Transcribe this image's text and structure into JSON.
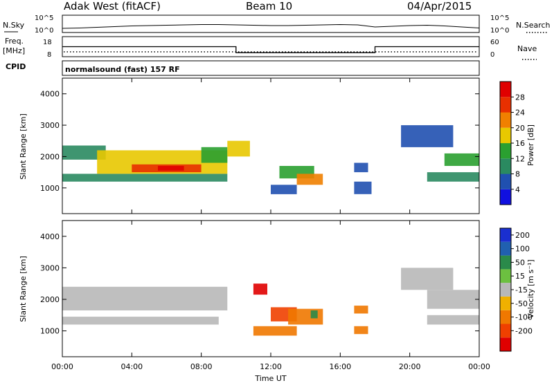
{
  "header": {
    "site": "Adak West (fitACF)",
    "beam": "Beam 10",
    "date": "04/Apr/2015"
  },
  "noise_panel": {
    "left_label": "N.Sky",
    "right_label": "N.Search",
    "ticks_left": [
      "10^5",
      "10^0"
    ],
    "ticks_right": [
      "10^5",
      "10^0"
    ]
  },
  "freq_panel": {
    "left_label_1": "Freq.",
    "left_label_2": "[MHz]",
    "right_label": "Nave",
    "ticks_left": [
      "18",
      "8"
    ],
    "ticks_right": [
      "60",
      "0"
    ]
  },
  "cpid": {
    "label": "CPID",
    "mode": "normalsound (fast) 157 RF"
  },
  "x_axis": {
    "ticks": [
      "00:00",
      "04:00",
      "08:00",
      "12:00",
      "16:00",
      "20:00",
      "00:00"
    ],
    "label": "Time UT"
  },
  "y_axis": {
    "label": "Slant Range [km]",
    "ticks": [
      "1000",
      "2000",
      "3000",
      "4000"
    ]
  },
  "power_colorbar": {
    "label": "Power [dB]",
    "ticks": [
      "4",
      "8",
      "12",
      "16",
      "20",
      "24",
      "28"
    ],
    "colors": [
      "#1010e0",
      "#2050b0",
      "#2a8a60",
      "#2aa030",
      "#e8c800",
      "#f08000",
      "#e83000",
      "#e00000"
    ]
  },
  "velocity_colorbar": {
    "label": "Velocity [m s⁻¹]",
    "ticks": [
      "200",
      "100",
      "50",
      "15",
      "-15",
      "-50",
      "-100",
      "-200"
    ],
    "colors": [
      "#1a2fd0",
      "#2060b0",
      "#2a8a4a",
      "#6cc040",
      "#b8b8b8",
      "#f0b000",
      "#f07800",
      "#f04000",
      "#e00000"
    ]
  },
  "chart_data": [
    {
      "type": "line",
      "name": "noise",
      "x": [
        0,
        1,
        2,
        3,
        4,
        5,
        6,
        7,
        8,
        9,
        10,
        11,
        12,
        13,
        14,
        15,
        16,
        17,
        18,
        19,
        20,
        21,
        22,
        23,
        24
      ],
      "series": [
        {
          "values": [
            1.2,
            1.3,
            1.5,
            1.7,
            1.9,
            2.0,
            2.1,
            2.2,
            2.3,
            2.3,
            2.2,
            2.1,
            2.0,
            2.0,
            2.1,
            2.2,
            2.3,
            2.2,
            1.6,
            1.8,
            2.0,
            2.1,
            1.9,
            1.6,
            1.3
          ]
        }
      ],
      "ylabel": "N.Sky",
      "ylim": [
        0,
        5
      ]
    },
    {
      "type": "line",
      "name": "frequency",
      "x": [
        0,
        10,
        10,
        18,
        18,
        24
      ],
      "series": [
        {
          "values": [
            13,
            13,
            10,
            10,
            13,
            13
          ]
        }
      ],
      "ylabel": "Freq. [MHz]",
      "ylim": [
        8,
        18
      ]
    },
    {
      "type": "heatmap",
      "name": "power",
      "xlabel": "Time UT",
      "ylabel": "Slant Range [km]",
      "xlim": [
        0,
        24
      ],
      "ylim": [
        180,
        4500
      ],
      "regions": [
        {
          "t0": 0.0,
          "t1": 9.5,
          "r0": 1200,
          "r1": 1450,
          "v": 10
        },
        {
          "t0": 0.0,
          "t1": 2.5,
          "r0": 1900,
          "r1": 2350,
          "v": 9
        },
        {
          "t0": 2.0,
          "t1": 9.5,
          "r0": 1450,
          "r1": 2200,
          "v": 16
        },
        {
          "t0": 4.0,
          "t1": 8.0,
          "r0": 1500,
          "r1": 1750,
          "v": 24
        },
        {
          "t0": 5.5,
          "t1": 7.0,
          "r0": 1550,
          "r1": 1700,
          "v": 28
        },
        {
          "t0": 8.0,
          "t1": 9.5,
          "r0": 1800,
          "r1": 2300,
          "v": 14
        },
        {
          "t0": 9.5,
          "t1": 10.8,
          "r0": 2000,
          "r1": 2500,
          "v": 16
        },
        {
          "t0": 12.5,
          "t1": 14.5,
          "r0": 1300,
          "r1": 1700,
          "v": 14
        },
        {
          "t0": 13.5,
          "t1": 15.0,
          "r0": 1100,
          "r1": 1450,
          "v": 20
        },
        {
          "t0": 12.0,
          "t1": 13.5,
          "r0": 800,
          "r1": 1100,
          "v": 6
        },
        {
          "t0": 16.8,
          "t1": 17.6,
          "r0": 1500,
          "r1": 1800,
          "v": 6
        },
        {
          "t0": 16.8,
          "t1": 17.8,
          "r0": 800,
          "r1": 1200,
          "v": 6
        },
        {
          "t0": 19.5,
          "t1": 22.5,
          "r0": 2300,
          "r1": 3000,
          "v": 6
        },
        {
          "t0": 22.0,
          "t1": 24.0,
          "r0": 1700,
          "r1": 2100,
          "v": 14
        },
        {
          "t0": 21.0,
          "t1": 24.0,
          "r0": 1200,
          "r1": 1500,
          "v": 8
        }
      ]
    },
    {
      "type": "heatmap",
      "name": "velocity",
      "xlabel": "Time UT",
      "ylabel": "Slant Range [km]",
      "xlim": [
        0,
        24
      ],
      "ylim": [
        180,
        4500
      ],
      "regions": [
        {
          "t0": 0.0,
          "t1": 9.5,
          "r0": 1650,
          "r1": 2400,
          "v": 0
        },
        {
          "t0": 0.0,
          "t1": 9.0,
          "r0": 1200,
          "r1": 1450,
          "v": 0
        },
        {
          "t0": 11.0,
          "t1": 11.8,
          "r0": 2150,
          "r1": 2500,
          "v": -200
        },
        {
          "t0": 12.0,
          "t1": 13.5,
          "r0": 1300,
          "r1": 1750,
          "v": -100
        },
        {
          "t0": 13.0,
          "t1": 15.0,
          "r0": 1200,
          "r1": 1700,
          "v": -50
        },
        {
          "t0": 14.3,
          "t1": 14.7,
          "r0": 1400,
          "r1": 1650,
          "v": 50
        },
        {
          "t0": 11.0,
          "t1": 13.5,
          "r0": 850,
          "r1": 1150,
          "v": -50
        },
        {
          "t0": 16.8,
          "t1": 17.6,
          "r0": 1550,
          "r1": 1800,
          "v": -50
        },
        {
          "t0": 16.8,
          "t1": 17.6,
          "r0": 900,
          "r1": 1150,
          "v": -50
        },
        {
          "t0": 19.5,
          "t1": 22.5,
          "r0": 2300,
          "r1": 3000,
          "v": 15
        },
        {
          "t0": 21.0,
          "t1": 24.0,
          "r0": 1700,
          "r1": 2300,
          "v": 0
        },
        {
          "t0": 21.0,
          "t1": 24.0,
          "r0": 1200,
          "r1": 1500,
          "v": 0
        }
      ]
    }
  ]
}
